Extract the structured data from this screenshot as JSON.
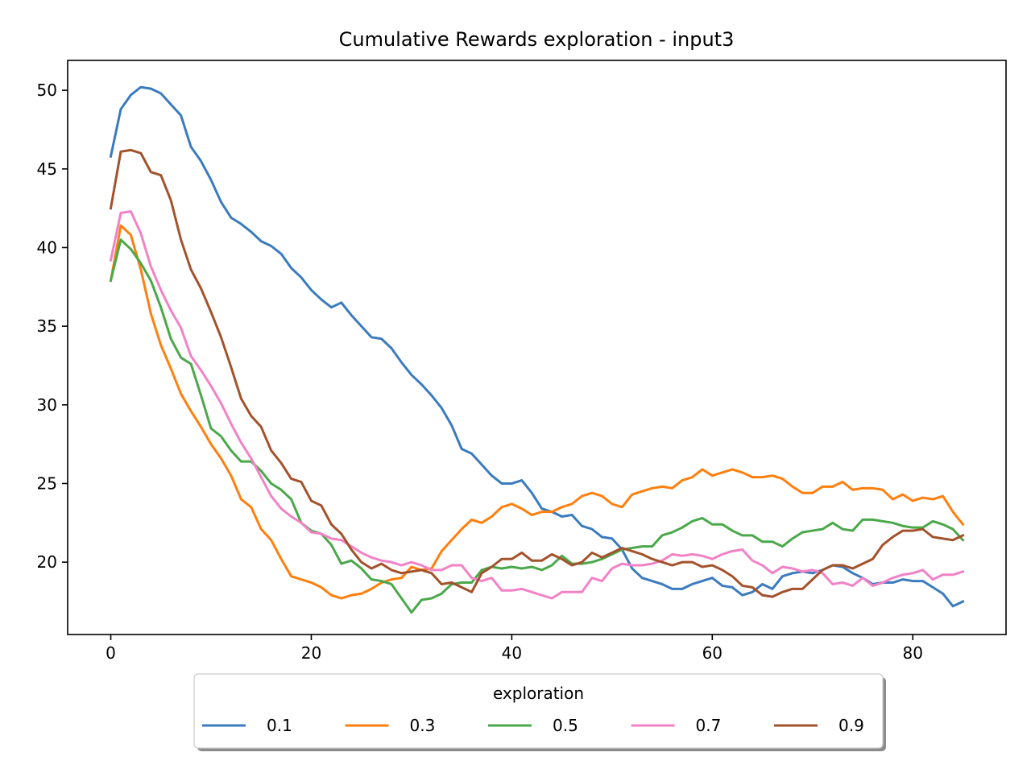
{
  "chart_data": {
    "type": "line",
    "title": "Cumulative Rewards exploration - input3",
    "xlabel": "",
    "ylabel": "",
    "xlim": [
      -4.3,
      89.3
    ],
    "ylim": [
      15.4,
      51.9
    ],
    "xticks": [
      0,
      20,
      40,
      60,
      80
    ],
    "yticks": [
      20,
      25,
      30,
      35,
      40,
      45,
      50
    ],
    "grid": false,
    "legend": {
      "title": "exploration",
      "placement": "bottom-center",
      "columns": 5
    },
    "x_start": 0,
    "series": [
      {
        "name": "0.1",
        "color": "#3a7bbf",
        "values": [
          45.8,
          48.8,
          49.7,
          50.2,
          50.1,
          49.8,
          49.1,
          48.4,
          46.4,
          45.5,
          44.3,
          42.9,
          41.9,
          41.5,
          41.0,
          40.4,
          40.1,
          39.6,
          38.7,
          38.1,
          37.3,
          36.7,
          36.2,
          36.5,
          35.7,
          35.0,
          34.3,
          34.2,
          33.6,
          32.7,
          31.9,
          31.3,
          30.6,
          29.8,
          28.7,
          27.2,
          26.9,
          26.2,
          25.5,
          25.0,
          25.0,
          25.2,
          24.4,
          23.4,
          23.2,
          22.9,
          23.0,
          22.3,
          22.1,
          21.6,
          21.5,
          20.8,
          19.6,
          19.0,
          18.8,
          18.6,
          18.3,
          18.3,
          18.6,
          18.8,
          19.0,
          18.5,
          18.4,
          17.9,
          18.1,
          18.6,
          18.3,
          19.1,
          19.3,
          19.4,
          19.3,
          19.5,
          19.8,
          19.7,
          19.3,
          19.0,
          18.6,
          18.7,
          18.7,
          18.9,
          18.8,
          18.8,
          18.4,
          18.0,
          17.2,
          17.5
        ]
      },
      {
        "name": "0.3",
        "color": "#ff7f0e",
        "values": [
          37.9,
          41.4,
          40.8,
          38.6,
          35.8,
          33.8,
          32.3,
          30.7,
          29.6,
          28.6,
          27.5,
          26.6,
          25.5,
          24.0,
          23.5,
          22.1,
          21.4,
          20.2,
          19.1,
          18.9,
          18.7,
          18.4,
          17.9,
          17.7,
          17.9,
          18.0,
          18.3,
          18.7,
          18.9,
          19.0,
          19.7,
          19.5,
          19.6,
          20.7,
          21.4,
          22.1,
          22.7,
          22.5,
          22.9,
          23.5,
          23.7,
          23.4,
          23.0,
          23.2,
          23.2,
          23.5,
          23.7,
          24.2,
          24.4,
          24.2,
          23.7,
          23.5,
          24.3,
          24.5,
          24.7,
          24.8,
          24.7,
          25.2,
          25.4,
          25.9,
          25.5,
          25.7,
          25.9,
          25.7,
          25.4,
          25.4,
          25.5,
          25.3,
          24.8,
          24.4,
          24.4,
          24.8,
          24.8,
          25.1,
          24.6,
          24.7,
          24.7,
          24.6,
          24.0,
          24.3,
          23.9,
          24.1,
          24.0,
          24.2,
          23.2,
          22.4
        ]
      },
      {
        "name": "0.5",
        "color": "#4aa84a",
        "values": [
          37.9,
          40.5,
          39.9,
          39.0,
          37.9,
          36.2,
          34.2,
          33.0,
          32.6,
          30.6,
          28.5,
          28.0,
          27.1,
          26.4,
          26.4,
          25.8,
          25.0,
          24.6,
          24.0,
          22.5,
          22.0,
          21.8,
          21.1,
          19.9,
          20.1,
          19.6,
          18.9,
          18.8,
          18.6,
          17.7,
          16.8,
          17.6,
          17.7,
          18.0,
          18.6,
          18.7,
          18.7,
          19.5,
          19.7,
          19.6,
          19.7,
          19.6,
          19.7,
          19.5,
          19.8,
          20.4,
          19.9,
          19.9,
          20.0,
          20.2,
          20.5,
          20.8,
          20.9,
          21.0,
          21.0,
          21.7,
          21.9,
          22.2,
          22.6,
          22.8,
          22.4,
          22.4,
          22.0,
          21.7,
          21.7,
          21.3,
          21.3,
          21.0,
          21.5,
          21.9,
          22.0,
          22.1,
          22.5,
          22.1,
          22.0,
          22.7,
          22.7,
          22.6,
          22.5,
          22.3,
          22.2,
          22.2,
          22.6,
          22.4,
          22.1,
          21.4
        ]
      },
      {
        "name": "0.7",
        "color": "#f282c6",
        "values": [
          39.2,
          42.2,
          42.3,
          40.9,
          38.8,
          37.3,
          36.0,
          34.9,
          33.1,
          32.2,
          31.2,
          30.1,
          28.8,
          27.6,
          26.6,
          25.4,
          24.2,
          23.4,
          22.9,
          22.5,
          21.9,
          21.8,
          21.5,
          21.4,
          21.0,
          20.6,
          20.3,
          20.1,
          20.0,
          19.8,
          20.0,
          19.8,
          19.5,
          19.5,
          19.8,
          19.8,
          19.0,
          18.8,
          19.0,
          18.2,
          18.2,
          18.3,
          18.1,
          17.9,
          17.7,
          18.1,
          18.1,
          18.1,
          19.0,
          18.8,
          19.6,
          19.9,
          19.8,
          19.8,
          19.9,
          20.1,
          20.5,
          20.4,
          20.5,
          20.4,
          20.2,
          20.5,
          20.7,
          20.8,
          20.1,
          19.8,
          19.3,
          19.7,
          19.6,
          19.4,
          19.5,
          19.3,
          18.6,
          18.7,
          18.5,
          19.0,
          18.5,
          18.7,
          19.0,
          19.2,
          19.3,
          19.5,
          18.9,
          19.2,
          19.2,
          19.4
        ]
      },
      {
        "name": "0.9",
        "color": "#a3522b",
        "values": [
          42.5,
          46.1,
          46.2,
          46.0,
          44.8,
          44.6,
          43.0,
          40.5,
          38.6,
          37.4,
          35.9,
          34.3,
          32.4,
          30.4,
          29.3,
          28.6,
          27.1,
          26.3,
          25.3,
          25.1,
          23.9,
          23.6,
          22.4,
          21.8,
          20.8,
          20.0,
          19.6,
          19.9,
          19.5,
          19.3,
          19.4,
          19.5,
          19.3,
          18.6,
          18.7,
          18.4,
          18.1,
          19.3,
          19.7,
          20.2,
          20.2,
          20.6,
          20.1,
          20.1,
          20.5,
          20.2,
          19.8,
          20.0,
          20.6,
          20.3,
          20.6,
          20.9,
          20.7,
          20.5,
          20.2,
          20.0,
          19.8,
          20.0,
          20.0,
          19.7,
          19.8,
          19.5,
          19.1,
          18.5,
          18.4,
          17.9,
          17.8,
          18.1,
          18.3,
          18.3,
          18.9,
          19.5,
          19.8,
          19.8,
          19.6,
          19.9,
          20.2,
          21.1,
          21.6,
          22.0,
          22.0,
          22.1,
          21.6,
          21.5,
          21.4,
          21.7
        ]
      }
    ]
  }
}
